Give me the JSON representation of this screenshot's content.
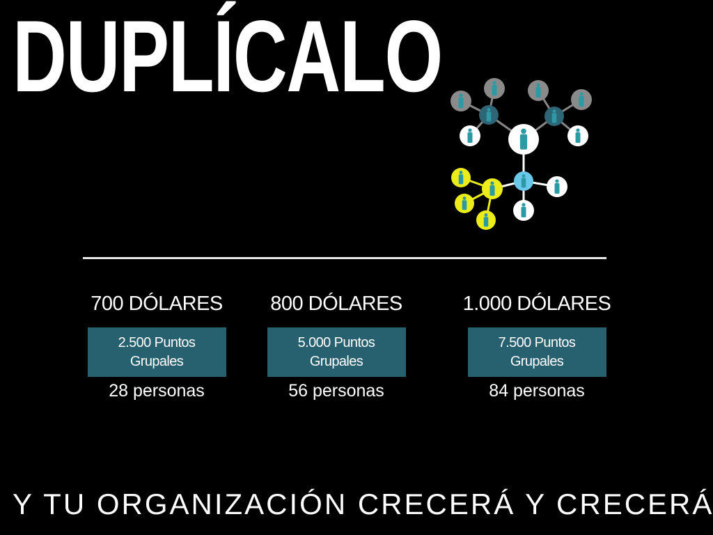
{
  "slide": {
    "title": "DUPLÍCALO",
    "tagline": "Y TU ORGANIZACIÓN CRECERÁ Y CRECERÁ",
    "levels": [
      {
        "price": "700 DÓLARES",
        "points_line1": "2.500 Puntos",
        "points_line2": "Grupales",
        "people": "28 personas"
      },
      {
        "price": "800 DÓLARES",
        "points_line1": "5.000 Puntos",
        "points_line2": "Grupales",
        "people": "56 personas"
      },
      {
        "price": "1.000 DÓLARES",
        "points_line1": "7.500 Puntos",
        "points_line2": "Grupales",
        "people": "84 personas"
      }
    ]
  },
  "colors": {
    "background": "#000000",
    "box": "#27606f",
    "node_gray": "#8a8a8a",
    "node_dark_teal": "#2f6677",
    "node_white": "#ffffff",
    "node_light_blue": "#6cc8ea",
    "node_yellow": "#ecec1a",
    "person_icon": "#2c9aa5"
  }
}
